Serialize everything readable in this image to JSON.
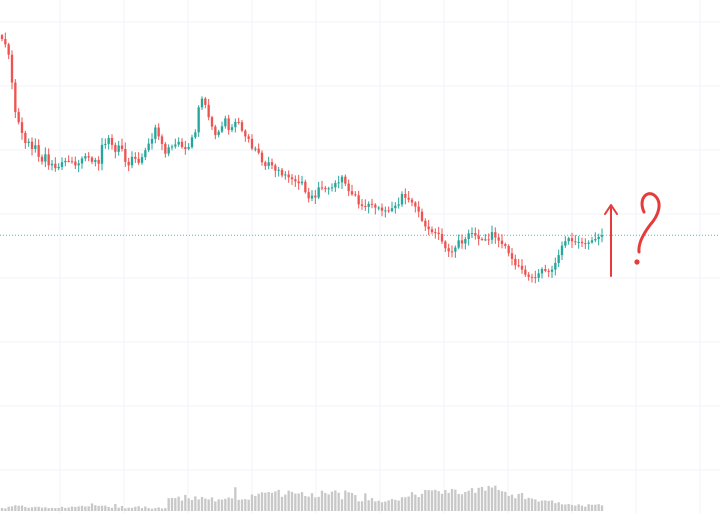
{
  "chart_data": {
    "type": "candlestick",
    "price_axis": {
      "shown": false
    },
    "time_axis": {
      "shown": false
    },
    "grid": true,
    "colors": {
      "up": "#26a69a",
      "down": "#ef5350",
      "volume": "#c8c8c8",
      "grid": "#f0f3fa",
      "current_price_line": "#4dbfae",
      "annotation": "#e63b3b"
    },
    "price_range": [
      0,
      100
    ],
    "volume_range": [
      0,
      100
    ],
    "last_price": 34.2,
    "close_series": [
      96.5,
      94.8,
      91.5,
      82.7,
      73.3,
      70.1,
      66.7,
      63.5,
      63.9,
      61.6,
      62.8,
      59.1,
      57.6,
      59.9,
      56.4,
      56.9,
      55.5,
      55.9,
      57.4,
      57.8,
      57.7,
      57.6,
      56.4,
      57.0,
      58.6,
      59.3,
      58.9,
      57.5,
      58.1,
      56.9,
      62.9,
      63.2,
      65.1,
      62.9,
      60.7,
      62.7,
      61.6,
      57.5,
      56.4,
      59.1,
      58.5,
      57.2,
      59.0,
      61.2,
      63.3,
      64.8,
      68.4,
      65.6,
      63.2,
      60.1,
      62.1,
      62.4,
      63.0,
      63.9,
      62.2,
      61.6,
      62.2,
      65.3,
      66.9,
      74.8,
      77.6,
      75.6,
      71.7,
      68.7,
      66.0,
      67.1,
      68.8,
      71.3,
      67.6,
      68.5,
      70.2,
      70.1,
      67.4,
      65.6,
      64.8,
      61.7,
      61.7,
      60.4,
      57.4,
      56.2,
      57.4,
      56.4,
      54.7,
      55.0,
      53.2,
      53.5,
      52.6,
      52.0,
      51.3,
      50.7,
      51.2,
      47.9,
      45.9,
      46.8,
      46.2,
      49.4,
      49.2,
      49.1,
      49.1,
      49.4,
      50.8,
      51.0,
      52.8,
      50.6,
      48.2,
      47.2,
      46.9,
      44.0,
      43.5,
      43.2,
      44.2,
      43.9,
      43.0,
      43.0,
      42.0,
      42.1,
      41.9,
      42.8,
      43.6,
      44.0,
      47.3,
      46.1,
      45.5,
      44.6,
      43.3,
      41.7,
      38.8,
      37.0,
      36.1,
      35.2,
      35.0,
      34.6,
      32.2,
      30.1,
      29.1,
      29.0,
      30.3,
      32.6,
      31.6,
      33.0,
      34.8,
      34.9,
      34.1,
      33.0,
      32.9,
      32.9,
      32.8,
      35.2,
      33.5,
      32.5,
      31.4,
      30.8,
      28.5,
      26.7,
      24.7,
      24.5,
      23.3,
      21.7,
      21.0,
      20.9,
      20.7,
      22.1,
      23.5,
      22.9,
      22.6,
      23.3,
      25.4,
      27.9,
      30.9,
      32.3,
      33.3,
      32.3,
      32.1,
      32.1,
      31.7,
      31.5,
      31.9,
      32.6,
      33.0,
      33.7,
      34.2
    ],
    "volume_series": [
      2.1,
      1.8,
      3.0,
      3.2,
      4.0,
      3.6,
      3.8,
      2.8,
      2.2,
      2.6,
      2.9,
      2.9,
      2.3,
      2.6,
      2.0,
      2.1,
      2.0,
      2.1,
      2.9,
      2.1,
      2.4,
      3.1,
      2.8,
      3.2,
      3.6,
      3.1,
      3.2,
      5.2,
      4.0,
      3.5,
      3.7,
      3.7,
      2.8,
      2.2,
      4.8,
      2.3,
      3.5,
      1.9,
      2.3,
      2.2,
      2.9,
      3.3,
      2.0,
      3.1,
      2.0,
      1.6,
      2.0,
      2.5,
      1.7,
      2.0,
      8.8,
      9.0,
      8.9,
      9.9,
      7.2,
      11.1,
      8.7,
      7.6,
      10.1,
      8.0,
      9.7,
      8.6,
      8.0,
      9.4,
      6.6,
      8.0,
      7.9,
      8.4,
      9.3,
      8.7,
      16.4,
      7.7,
      7.9,
      8.2,
      7.8,
      11.4,
      10.4,
      11.9,
      12.9,
      12.6,
      13.1,
      12.5,
      13.5,
      14.6,
      9.8,
      11.3,
      14.0,
      13.2,
      12.0,
      12.1,
      13.0,
      10.3,
      9.9,
      12.3,
      9.4,
      9.8,
      14.0,
      12.5,
      11.5,
      13.4,
      14.2,
      12.6,
      8.1,
      14.1,
      12.9,
      12.4,
      11.0,
      6.7,
      6.7,
      12.2,
      7.4,
      8.9,
      6.6,
      7.1,
      6.1,
      6.5,
      7.3,
      8.2,
      7.7,
      7.2,
      9.5,
      9.5,
      10.0,
      13.0,
      11.3,
      9.6,
      11.8,
      14.5,
      14.4,
      14.2,
      14.6,
      13.7,
      11.9,
      14.5,
      12.5,
      15.2,
      14.7,
      11.8,
      11.5,
      13.1,
      14.0,
      15.8,
      12.5,
      16.0,
      16.6,
      14.0,
      17.3,
      16.2,
      17.5,
      14.5,
      13.6,
      13.2,
      10.4,
      11.3,
      8.8,
      11.8,
      12.4,
      8.2,
      9.1,
      8.6,
      8.0,
      6.5,
      7.2,
      7.3,
      6.9,
      7.3,
      5.4,
      6.0,
      4.6,
      4.5,
      4.8,
      4.2,
      3.7,
      4.6,
      3.7,
      3.0,
      4.7,
      4.3,
      4.4,
      4.7,
      3.9
    ]
  },
  "annotations": {
    "arrow": "up-arrow",
    "question_mark": "?"
  }
}
